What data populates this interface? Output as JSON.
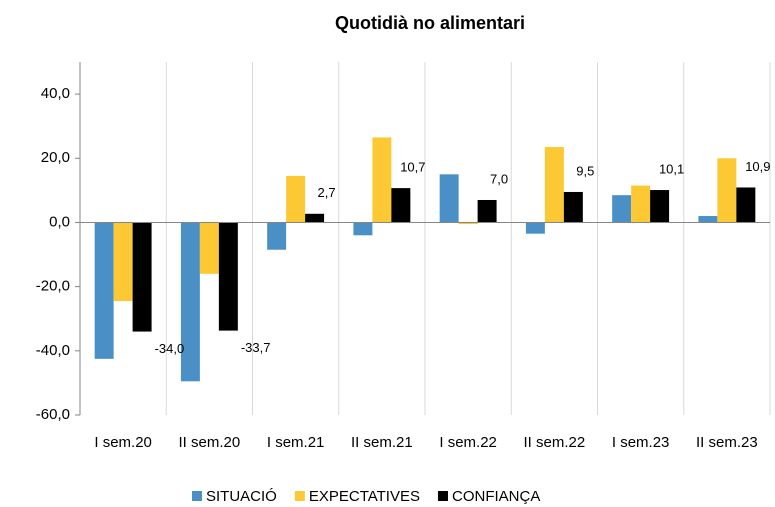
{
  "chart_data": {
    "type": "bar",
    "title": "Quotidià no alimentari",
    "categories": [
      "I sem.20",
      "II sem.20",
      "I sem.21",
      "II sem.21",
      "I sem.22",
      "II sem.22",
      "I sem.23",
      "II sem.23"
    ],
    "series": [
      {
        "name": "SITUACIÓ",
        "color": "#4a8fc6",
        "values": [
          -42.5,
          -49.5,
          -8.5,
          -4,
          15,
          -3.5,
          8.5,
          2
        ]
      },
      {
        "name": "EXPECTATIVES",
        "color": "#fcc834",
        "values": [
          -24.5,
          -16,
          14.5,
          26.5,
          -0.5,
          23.5,
          11.5,
          20
        ]
      },
      {
        "name": "CONFIANÇA",
        "color": "#000000",
        "values": [
          -34.0,
          -33.7,
          2.7,
          10.7,
          7.0,
          9.5,
          10.1,
          10.9
        ],
        "value_labels": [
          "-34,0",
          "-33,7",
          "2,7",
          "10,7",
          "7,0",
          "9,5",
          "10,1",
          "10,9"
        ]
      }
    ],
    "ylim": [
      -60,
      50
    ],
    "yticks": [
      {
        "value": -60,
        "label": "-60,0"
      },
      {
        "value": -40,
        "label": "-40,0"
      },
      {
        "value": -20,
        "label": "-20,0"
      },
      {
        "value": 0,
        "label": "0,0"
      },
      {
        "value": 20,
        "label": "20,0"
      },
      {
        "value": 40,
        "label": "40,0"
      }
    ],
    "legend": "bottom"
  }
}
